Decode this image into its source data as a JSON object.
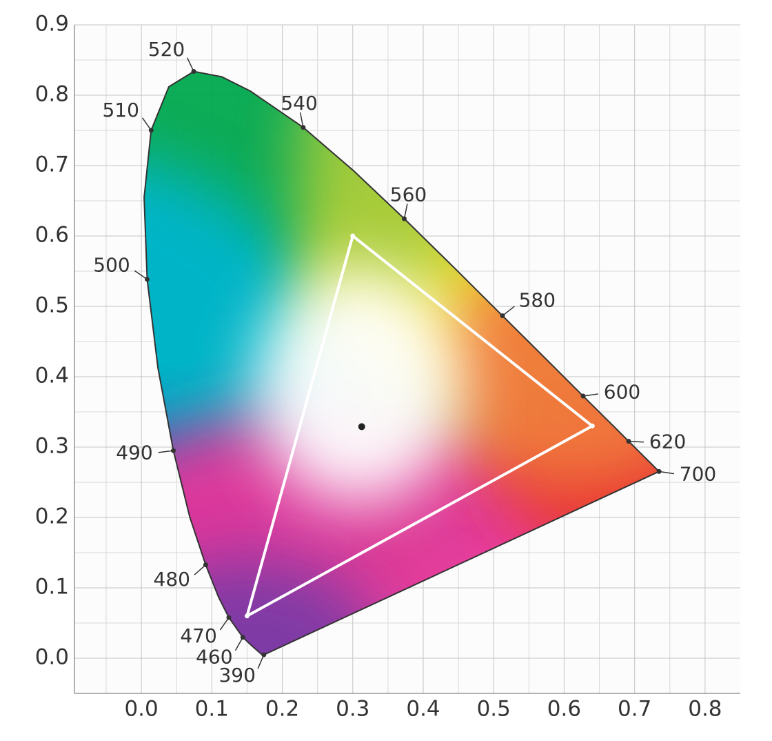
{
  "chart_data": {
    "type": "chromaticity",
    "xlim": [
      -0.095,
      0.85
    ],
    "ylim": [
      -0.05,
      0.9
    ],
    "xticks": [
      {
        "value": 0,
        "label": "0.0"
      },
      0.1,
      0.2,
      0.3,
      0.4,
      0.5,
      0.6,
      0.7,
      0.8
    ],
    "yticks": [
      {
        "value": 0,
        "label": "0.0"
      },
      0.1,
      0.2,
      0.3,
      0.4,
      0.5,
      0.6,
      0.7,
      0.8,
      0.9
    ],
    "minor_xticks": [
      -0.05,
      0.05,
      0.15,
      0.25,
      0.35,
      0.45,
      0.55,
      0.65,
      0.75
    ],
    "minor_yticks": [
      0.05,
      0.15,
      0.25,
      0.35,
      0.45,
      0.55,
      0.65,
      0.75,
      0.85
    ],
    "grid": true,
    "locus": {
      "x": [
        0.1741,
        0.1738,
        0.1733,
        0.1726,
        0.1714,
        0.1689,
        0.1644,
        0.1566,
        0.144,
        0.1241,
        0.1096,
        0.0913,
        0.0687,
        0.0454,
        0.0235,
        0.0082,
        0.0039,
        0.0139,
        0.0389,
        0.0743,
        0.1142,
        0.1547,
        0.2296,
        0.3016,
        0.3731,
        0.4441,
        0.5125,
        0.5752,
        0.627,
        0.6658,
        0.6915,
        0.7079,
        0.719,
        0.726,
        0.7347
      ],
      "y": [
        0.005,
        0.0049,
        0.0048,
        0.0048,
        0.0051,
        0.0069,
        0.0109,
        0.0177,
        0.0297,
        0.0578,
        0.0868,
        0.1327,
        0.2007,
        0.295,
        0.4127,
        0.5384,
        0.6548,
        0.7502,
        0.812,
        0.8338,
        0.8262,
        0.8059,
        0.7543,
        0.6923,
        0.6245,
        0.5547,
        0.4866,
        0.4242,
        0.3725,
        0.334,
        0.3083,
        0.292,
        0.2809,
        0.274,
        0.2653
      ],
      "color": "#333333"
    },
    "points": [
      {
        "label": "390",
        "x": 0.1738,
        "y": 0.0049
      },
      {
        "label": "460",
        "x": 0.144,
        "y": 0.0297
      },
      {
        "label": "470",
        "x": 0.1241,
        "y": 0.0578
      },
      {
        "label": "480",
        "x": 0.0913,
        "y": 0.1327
      },
      {
        "label": "490",
        "x": 0.0454,
        "y": 0.295
      },
      {
        "label": "500",
        "x": 0.0082,
        "y": 0.5384
      },
      {
        "label": "510",
        "x": 0.0139,
        "y": 0.7502
      },
      {
        "label": "520",
        "x": 0.0743,
        "y": 0.8338
      },
      {
        "label": "540",
        "x": 0.2296,
        "y": 0.7543
      },
      {
        "label": "560",
        "x": 0.3731,
        "y": 0.6245
      },
      {
        "label": "580",
        "x": 0.5125,
        "y": 0.4866
      },
      {
        "label": "600",
        "x": 0.627,
        "y": 0.3725
      },
      {
        "label": "620",
        "x": 0.6915,
        "y": 0.3083
      },
      {
        "label": "700",
        "x": 0.7347,
        "y": 0.2653
      }
    ],
    "gamut": {
      "x": [
        0.64,
        0.3,
        0.15
      ],
      "y": [
        0.33,
        0.6,
        0.06
      ],
      "color": "#ffffff"
    },
    "white_point": {
      "x": 0.3127,
      "y": 0.329,
      "color": "#222222"
    }
  }
}
